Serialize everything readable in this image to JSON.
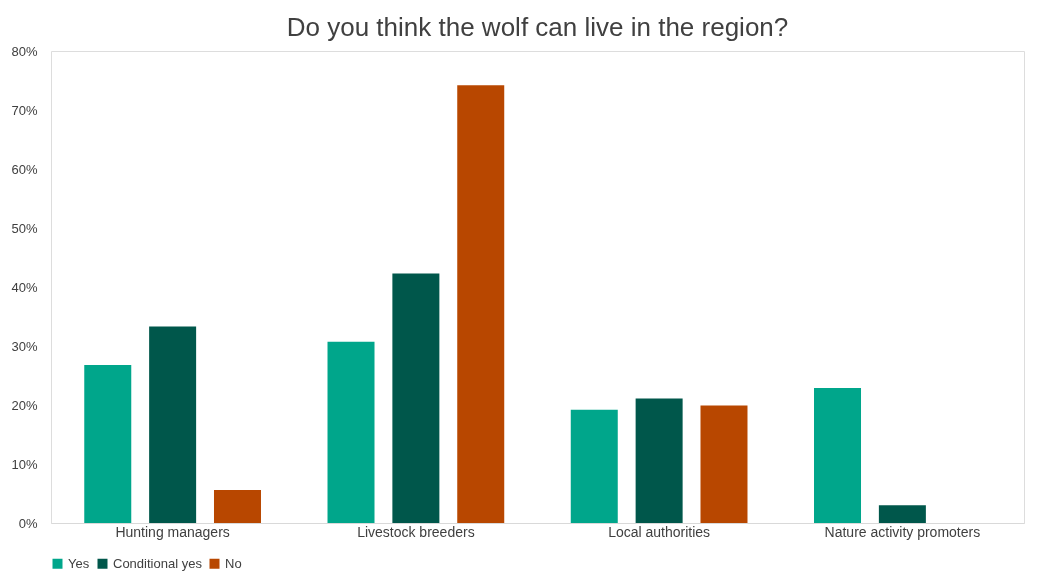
{
  "chart_data": {
    "type": "bar",
    "title": "Do you think the wolf can live in the region?",
    "categories": [
      "Hunting managers",
      "Livestock breeders",
      "Local authorities",
      "Nature activity promoters"
    ],
    "series": [
      {
        "name": "Yes",
        "color": "#00a68b",
        "values": [
          26.8,
          30.7,
          19.2,
          22.9
        ]
      },
      {
        "name": "Conditional yes",
        "color": "#00574b",
        "values": [
          33.3,
          42.3,
          21.1,
          3.0
        ]
      },
      {
        "name": "No",
        "color": "#b84700",
        "values": [
          5.6,
          74.2,
          19.9,
          null
        ]
      }
    ],
    "ylim": [
      0,
      80
    ],
    "yticks": [
      {
        "value": 0,
        "label": "0%"
      },
      {
        "value": 10,
        "label": "10%"
      },
      {
        "value": 20,
        "label": "20%"
      },
      {
        "value": 30,
        "label": "30%"
      },
      {
        "value": 40,
        "label": "40%"
      },
      {
        "value": 50,
        "label": "50%"
      },
      {
        "value": 60,
        "label": "60%"
      },
      {
        "value": 70,
        "label": "70%"
      },
      {
        "value": 80,
        "label": "80%"
      }
    ],
    "grid": false,
    "legend": "bottom"
  }
}
